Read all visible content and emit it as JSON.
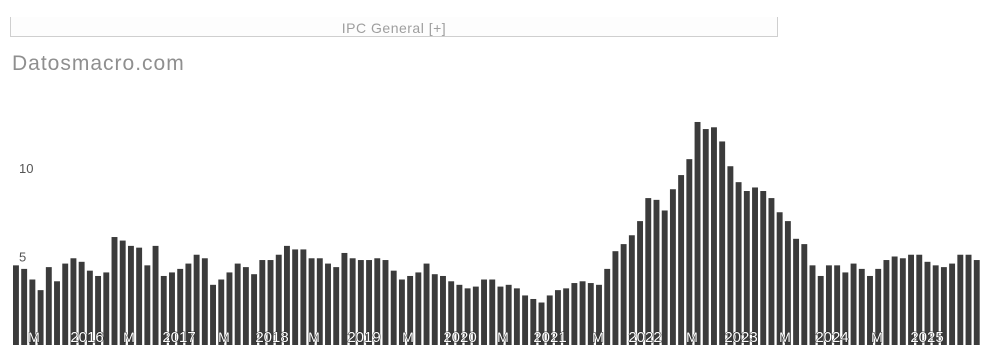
{
  "page": {
    "title": "IPC General [+]",
    "brand": "Datosmacro.com"
  },
  "colors": {
    "bar": "#3b3b3b",
    "text": "#555555",
    "brand": "#8f8f8f"
  },
  "chart_data": {
    "type": "bar",
    "title": "IPC General [+]",
    "xlabel": "",
    "ylabel": "",
    "ylim": [
      0,
      13.5
    ],
    "grid": false,
    "legend": "none",
    "ytick_labels": [
      "5",
      "10"
    ],
    "ytick_values": [
      5,
      10
    ],
    "x_labels": [
      "M",
      "2016",
      "M",
      "2017",
      "M",
      "2018",
      "M",
      "2019",
      "M",
      "2020",
      "M",
      "2021",
      "M",
      "2022",
      "M",
      "2023",
      "M",
      "2024",
      "M",
      "2025"
    ],
    "values": [
      4.5,
      4.3,
      3.7,
      3.1,
      4.4,
      3.6,
      4.6,
      4.9,
      4.7,
      4.2,
      3.9,
      4.1,
      6.1,
      5.9,
      5.6,
      5.5,
      4.5,
      5.6,
      3.9,
      4.1,
      4.3,
      4.6,
      5.1,
      4.9,
      3.4,
      3.7,
      4.1,
      4.6,
      4.4,
      4.0,
      4.8,
      4.8,
      5.1,
      5.6,
      5.4,
      5.4,
      4.9,
      4.9,
      4.6,
      4.4,
      5.2,
      4.9,
      4.8,
      4.8,
      4.9,
      4.8,
      4.2,
      3.7,
      3.9,
      4.1,
      4.6,
      4.0,
      3.9,
      3.6,
      3.4,
      3.2,
      3.3,
      3.7,
      3.7,
      3.3,
      3.4,
      3.2,
      2.8,
      2.6,
      2.4,
      2.8,
      3.1,
      3.2,
      3.5,
      3.6,
      3.5,
      3.4,
      4.3,
      5.3,
      5.7,
      6.2,
      7.0,
      8.3,
      8.2,
      7.6,
      8.8,
      9.6,
      10.5,
      12.6,
      12.2,
      12.3,
      11.5,
      10.1,
      9.2,
      8.7,
      8.9,
      8.7,
      8.3,
      7.5,
      7.0,
      6.0,
      5.7,
      4.5,
      3.9,
      4.5,
      4.5,
      4.1,
      4.6,
      4.3,
      3.9,
      4.3,
      4.8,
      5.0,
      4.9,
      5.1,
      5.1,
      4.7,
      4.5,
      4.4,
      4.6,
      5.1,
      5.1,
      4.8
    ]
  }
}
